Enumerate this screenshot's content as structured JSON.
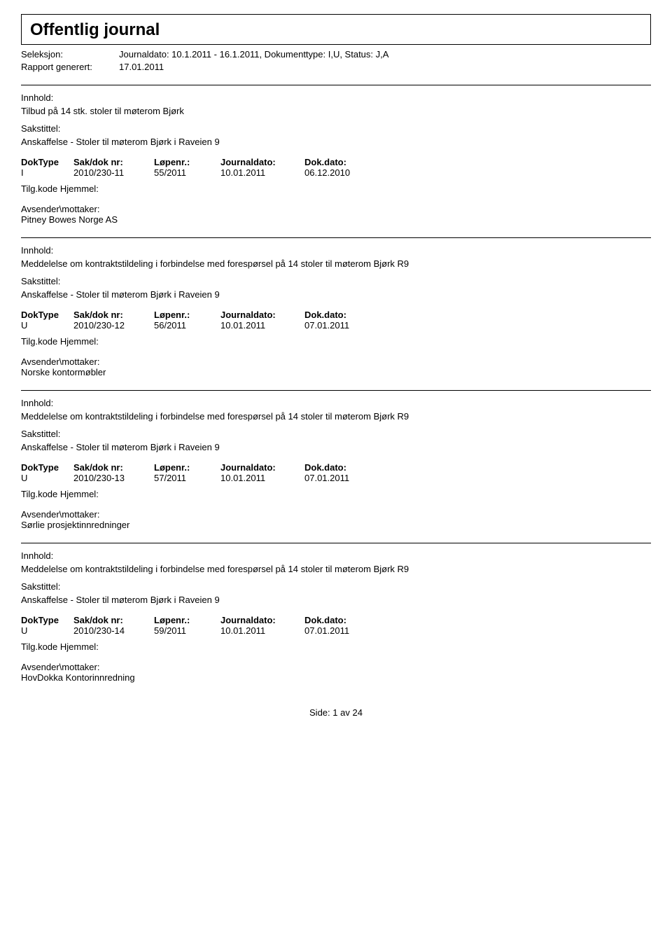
{
  "header": {
    "title": "Offentlig journal",
    "selection_label": "Seleksjon:",
    "selection_value": "Journaldato: 10.1.2011 - 16.1.2011, Dokumenttype: I,U, Status: J,A",
    "report_label": "Rapport generert:",
    "report_value": "17.01.2011"
  },
  "labels": {
    "innhold": "Innhold:",
    "sakstittel": "Sakstittel:",
    "doktype": "DokType",
    "sakdok": "Sak/dok nr:",
    "lopenr": "Løpenr.:",
    "journaldato": "Journaldato:",
    "dokdato": "Dok.dato:",
    "tilgkode": "Tilg.kode",
    "hjemmel": "Hjemmel:",
    "avsender": "Avsender\\mottaker:"
  },
  "entries": [
    {
      "innhold": "Tilbud på 14 stk. stoler til møterom Bjørk",
      "sakstittel": "Anskaffelse - Stoler til møterom Bjørk i Raveien 9",
      "doktype": "I",
      "sakdok": "2010/230-11",
      "lopenr": "55/2011",
      "journaldato": "10.01.2011",
      "dokdato": "06.12.2010",
      "avsender": "Pitney Bowes Norge AS"
    },
    {
      "innhold": "Meddelelse om kontraktstildeling i forbindelse med forespørsel på 14 stoler til møterom Bjørk R9",
      "sakstittel": "Anskaffelse - Stoler til møterom Bjørk i Raveien 9",
      "doktype": "U",
      "sakdok": "2010/230-12",
      "lopenr": "56/2011",
      "journaldato": "10.01.2011",
      "dokdato": "07.01.2011",
      "avsender": "Norske kontormøbler"
    },
    {
      "innhold": "Meddelelse om kontraktstildeling i forbindelse med forespørsel på 14 stoler til møterom Bjørk R9",
      "sakstittel": "Anskaffelse - Stoler til møterom Bjørk i Raveien 9",
      "doktype": "U",
      "sakdok": "2010/230-13",
      "lopenr": "57/2011",
      "journaldato": "10.01.2011",
      "dokdato": "07.01.2011",
      "avsender": "Sørlie prosjektinnredninger"
    },
    {
      "innhold": "Meddelelse om kontraktstildeling i forbindelse med forespørsel på 14 stoler til møterom Bjørk R9",
      "sakstittel": "Anskaffelse - Stoler til møterom Bjørk i Raveien 9",
      "doktype": "U",
      "sakdok": "2010/230-14",
      "lopenr": "59/2011",
      "journaldato": "10.01.2011",
      "dokdato": "07.01.2011",
      "avsender": "HovDokka Kontorinnredning"
    }
  ],
  "footer": {
    "side_label": "Side:",
    "page_current": "1",
    "page_sep": "av",
    "page_total": "24"
  }
}
